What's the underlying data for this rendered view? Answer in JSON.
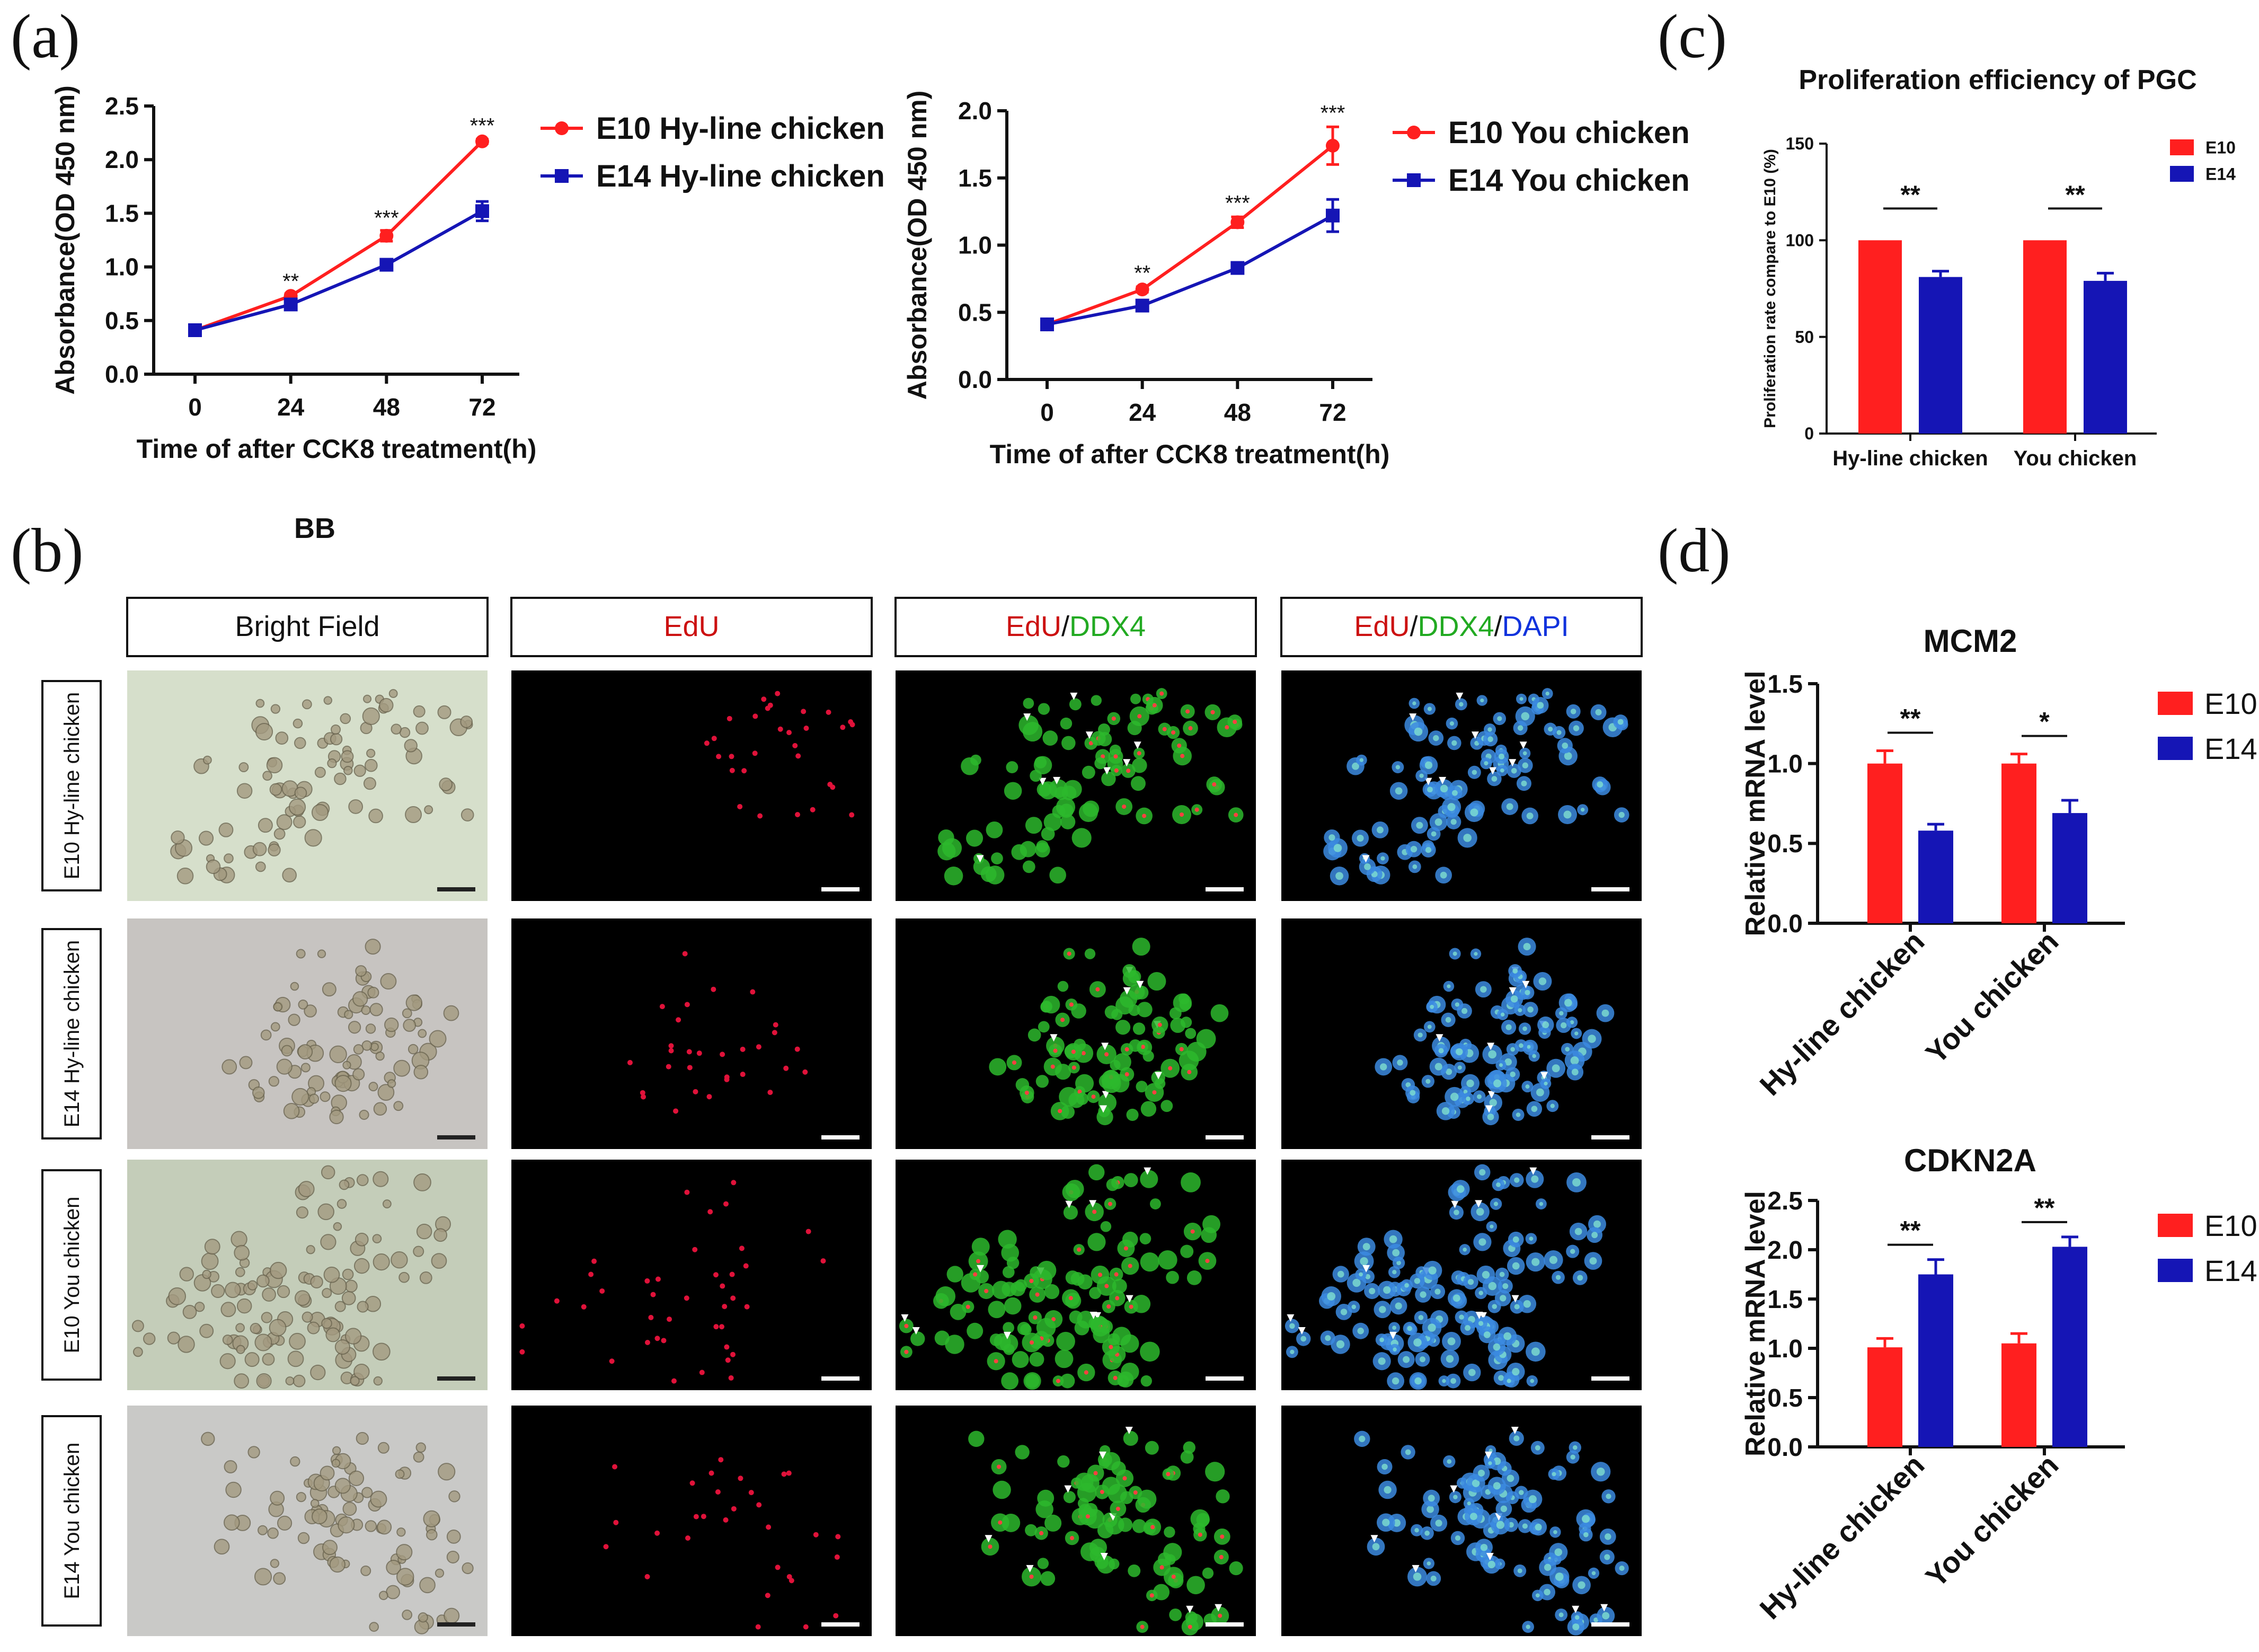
{
  "panels": {
    "a": "(a)",
    "b": "(b)",
    "c": "(c)",
    "d": "(d)",
    "stray_label": "BB"
  },
  "colors": {
    "e10": "#ff1f1f",
    "e14": "#1515b5",
    "edu": "#cc1111",
    "ddx4": "#22aa22",
    "dapi": "#1133dd"
  },
  "micro": {
    "headers": [
      {
        "parts": [
          {
            "text": "Bright Field",
            "color": "#111111"
          }
        ]
      },
      {
        "parts": [
          {
            "text": "EdU",
            "color": "#cc1111"
          }
        ]
      },
      {
        "parts": [
          {
            "text": "EdU",
            "color": "#cc1111"
          },
          {
            "text": "/",
            "color": "#111111"
          },
          {
            "text": "DDX4",
            "color": "#22aa22"
          }
        ]
      },
      {
        "parts": [
          {
            "text": "EdU",
            "color": "#cc1111"
          },
          {
            "text": "/",
            "color": "#111111"
          },
          {
            "text": "DDX4",
            "color": "#22aa22"
          },
          {
            "text": "/",
            "color": "#111111"
          },
          {
            "text": "DAPI",
            "color": "#1133dd"
          }
        ]
      }
    ],
    "rows": [
      "E10 Hy-line chicken",
      "E14 Hy-line chicken",
      "E10 You chicken",
      "E14 You chicken"
    ]
  },
  "chart_data": [
    {
      "id": "a-left",
      "type": "line",
      "title": "",
      "x": [
        0,
        24,
        48,
        72
      ],
      "series": [
        {
          "name": "E10 Hy-line chicken",
          "color": "#ff1f1f",
          "marker": "circle",
          "values": [
            0.41,
            0.73,
            1.29,
            2.17
          ],
          "errors": [
            0.02,
            0.02,
            0.05,
            0.02
          ]
        },
        {
          "name": "E14 Hy-line chicken",
          "color": "#1515b5",
          "marker": "square",
          "values": [
            0.41,
            0.65,
            1.02,
            1.52
          ],
          "errors": [
            0.02,
            0.02,
            0.03,
            0.09
          ]
        }
      ],
      "significance": [
        {
          "x": 24,
          "y": 0.8,
          "label": "**"
        },
        {
          "x": 48,
          "y": 1.39,
          "label": "***"
        },
        {
          "x": 72,
          "y": 2.25,
          "label": "***"
        }
      ],
      "xlabel": "Time of after CCK8 treatment(h)",
      "ylabel": "Absorbance(OD 450 nm)",
      "ylim": [
        0,
        2.5
      ],
      "yticks": [
        0.0,
        0.5,
        1.0,
        1.5,
        2.0,
        2.5
      ],
      "ytick_labels": [
        "0.0",
        "0.5",
        "1.0",
        "1.5",
        "2.0",
        "2.5"
      ],
      "xtick_labels": [
        "0",
        "24",
        "48",
        "72"
      ]
    },
    {
      "id": "a-right",
      "type": "line",
      "title": "",
      "x": [
        0,
        24,
        48,
        72
      ],
      "series": [
        {
          "name": "E10 You chicken",
          "color": "#ff1f1f",
          "marker": "circle",
          "values": [
            0.41,
            0.67,
            1.17,
            1.74
          ],
          "errors": [
            0.02,
            0.02,
            0.04,
            0.14
          ]
        },
        {
          "name": "E14 You chicken",
          "color": "#1515b5",
          "marker": "square",
          "values": [
            0.41,
            0.55,
            0.83,
            1.22
          ],
          "errors": [
            0.02,
            0.02,
            0.02,
            0.12
          ]
        }
      ],
      "significance": [
        {
          "x": 24,
          "y": 0.74,
          "label": "**"
        },
        {
          "x": 48,
          "y": 1.26,
          "label": "***"
        },
        {
          "x": 72,
          "y": 1.93,
          "label": "***"
        }
      ],
      "xlabel": "Time of after CCK8 treatment(h)",
      "ylabel": "Absorbance(OD 450 nm)",
      "ylim": [
        0,
        2.0
      ],
      "yticks": [
        0.0,
        0.5,
        1.0,
        1.5,
        2.0
      ],
      "ytick_labels": [
        "0.0",
        "0.5",
        "1.0",
        "1.5",
        "2.0"
      ],
      "xtick_labels": [
        "0",
        "24",
        "48",
        "72"
      ]
    },
    {
      "id": "c",
      "type": "bar",
      "title": "Proliferation efficiency of PGC",
      "categories": [
        "Hy-line chicken",
        "You chicken"
      ],
      "series": [
        {
          "name": "E10",
          "color": "#ff1f1f",
          "values": [
            100,
            100
          ],
          "errors": [
            0,
            0
          ]
        },
        {
          "name": "E14",
          "color": "#1515b5",
          "values": [
            81,
            79
          ],
          "errors": [
            3,
            4
          ]
        }
      ],
      "significance": [
        "**",
        "**"
      ],
      "xlabel": "",
      "ylabel": "Proliferation rate compare to E10 (%)",
      "ylim": [
        0,
        150
      ],
      "yticks": [
        0,
        50,
        100,
        150
      ],
      "ytick_labels": [
        "0",
        "50",
        "100",
        "150"
      ]
    },
    {
      "id": "d-top",
      "type": "bar",
      "title": "MCM2",
      "categories": [
        "Hy-line chicken",
        "You chicken"
      ],
      "series": [
        {
          "name": "E10",
          "color": "#ff1f1f",
          "values": [
            1.0,
            1.0
          ],
          "errors": [
            0.08,
            0.06
          ]
        },
        {
          "name": "E14",
          "color": "#1515b5",
          "values": [
            0.58,
            0.69
          ],
          "errors": [
            0.04,
            0.08
          ]
        }
      ],
      "significance": [
        "**",
        "*"
      ],
      "xlabel": "",
      "ylabel": "Relative mRNA level",
      "ylim": [
        0,
        1.5
      ],
      "yticks": [
        0.0,
        0.5,
        1.0,
        1.5
      ],
      "ytick_labels": [
        "0.0",
        "0.5",
        "1.0",
        "1.5"
      ]
    },
    {
      "id": "d-bottom",
      "type": "bar",
      "title": "CDKN2A",
      "categories": [
        "Hy-line chicken",
        "You chicken"
      ],
      "series": [
        {
          "name": "E10",
          "color": "#ff1f1f",
          "values": [
            1.01,
            1.05
          ],
          "errors": [
            0.09,
            0.1
          ]
        },
        {
          "name": "E14",
          "color": "#1515b5",
          "values": [
            1.75,
            2.03
          ],
          "errors": [
            0.15,
            0.1
          ]
        }
      ],
      "significance": [
        "**",
        "**"
      ],
      "xlabel": "",
      "ylabel": "Relative mRNA level",
      "ylim": [
        0,
        2.5
      ],
      "yticks": [
        0.0,
        0.5,
        1.0,
        1.5,
        2.0,
        2.5
      ],
      "ytick_labels": [
        "0.0",
        "0.5",
        "1.0",
        "1.5",
        "2.0",
        "2.5"
      ]
    }
  ]
}
